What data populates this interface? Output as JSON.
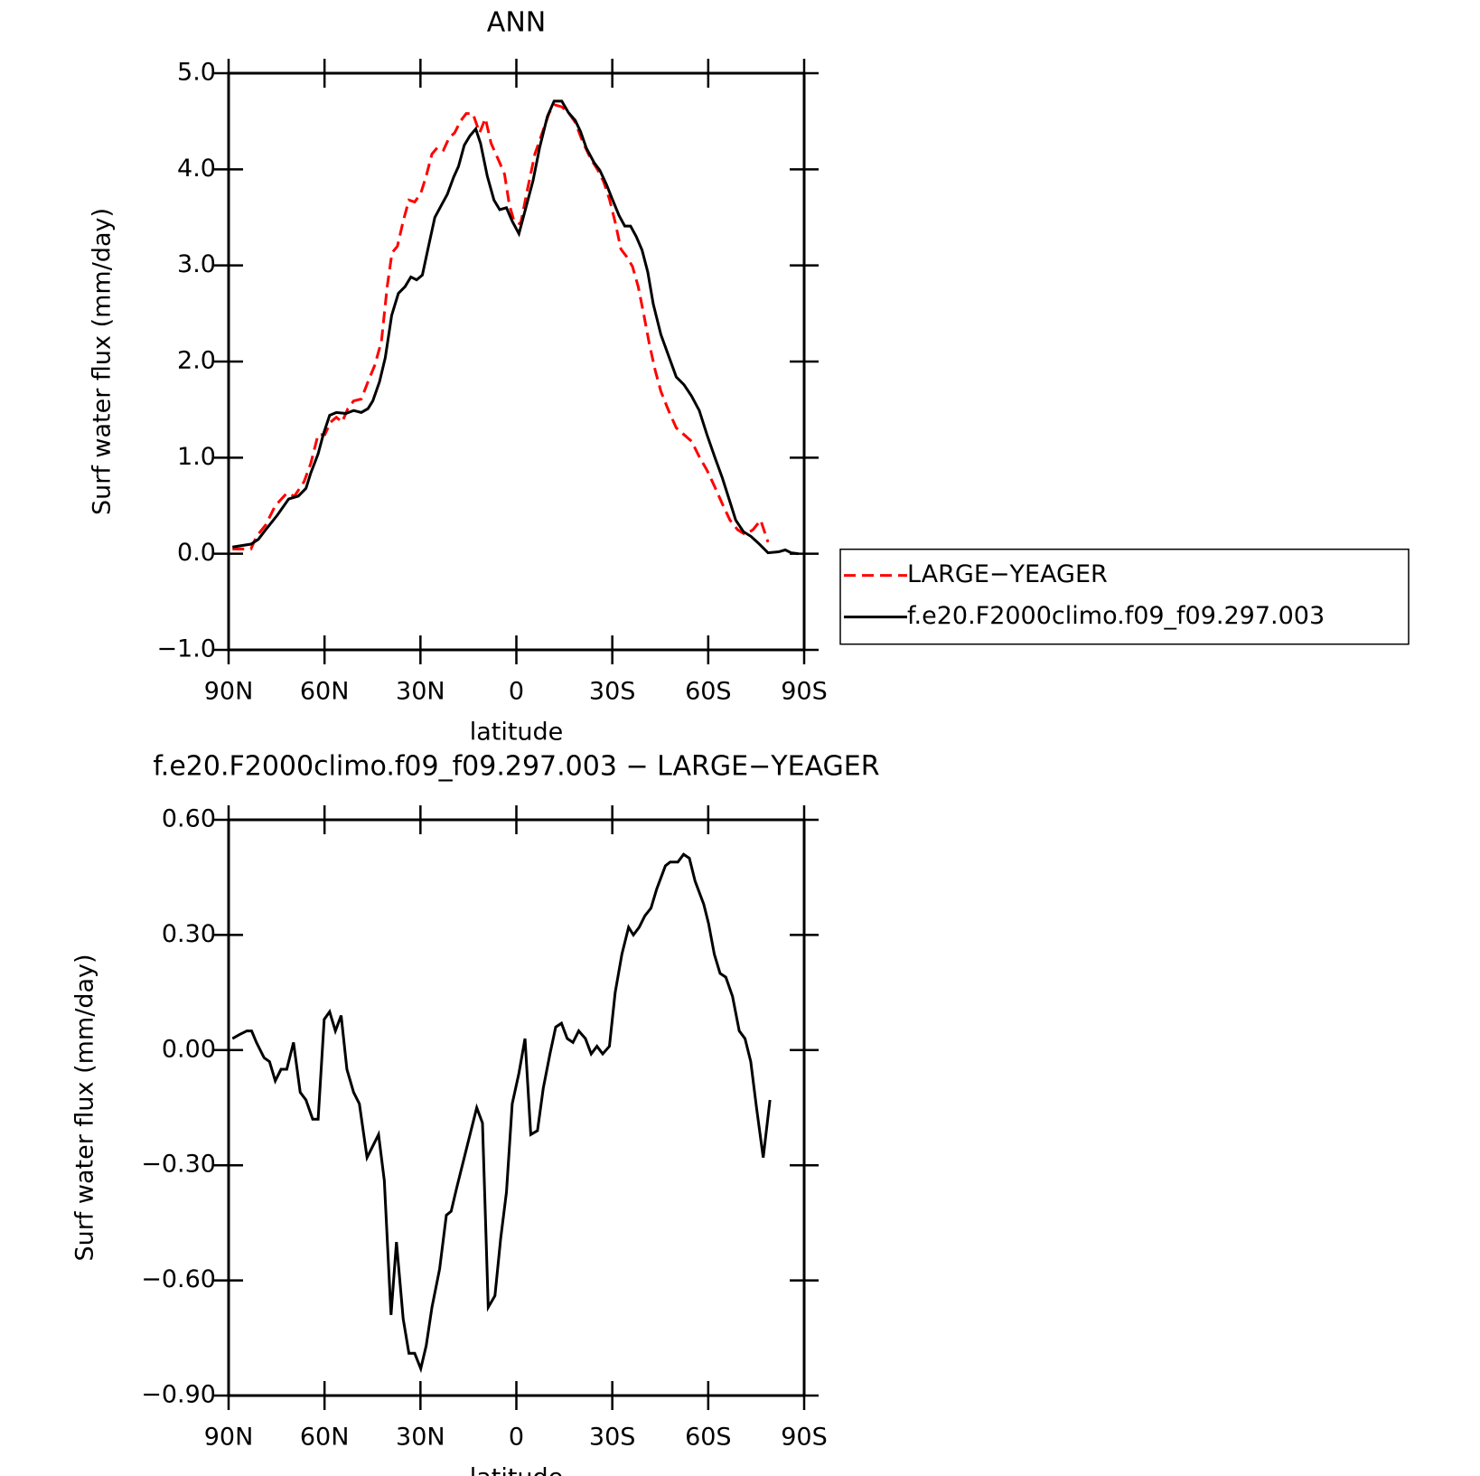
{
  "chart_data": [
    {
      "type": "line",
      "title": "ANN",
      "xlabel": "latitude",
      "ylabel": "Surf water flux (mm/day)",
      "xlim": [
        90,
        -90
      ],
      "xticks": [
        {
          "value": 90,
          "label": "90N"
        },
        {
          "value": 60,
          "label": "60N"
        },
        {
          "value": 30,
          "label": "30N"
        },
        0,
        {
          "value": -30,
          "label": "30S"
        },
        {
          "value": -60,
          "label": "60S"
        },
        {
          "value": -90,
          "label": "90S"
        }
      ],
      "ylim": [
        -1,
        5
      ],
      "yticks": [
        {
          "value": -1,
          "label": "−1.0"
        },
        {
          "value": 0,
          "label": "0.0"
        },
        {
          "value": 1,
          "label": "1.0"
        },
        {
          "value": 2,
          "label": "2.0"
        },
        {
          "value": 3,
          "label": "3.0"
        },
        {
          "value": 4,
          "label": "4.0"
        },
        {
          "value": 5,
          "label": "5.0"
        }
      ],
      "legend": "right",
      "series": [
        {
          "name": "LARGE−YEAGER",
          "color": "#ff0000",
          "line_style": "dashed",
          "x": [
            88.8,
            83,
            81.3,
            78.4,
            75.4,
            71.8,
            69.4,
            66.4,
            64.3,
            62,
            59.9,
            58.1,
            56.3,
            54.5,
            52.7,
            50.9,
            48.5,
            46.4,
            44.3,
            42.2,
            40.4,
            38.9,
            37.2,
            35.4,
            33.6,
            31.8,
            29.9,
            28.2,
            26.4,
            24.6,
            22.8,
            21,
            19.3,
            17.5,
            15.7,
            13.6,
            11.5,
            9.7,
            7.9,
            5.5,
            3.7,
            2.2,
            0.7,
            -1.3,
            -3.4,
            -5.8,
            -8.2,
            -10.3,
            -12.1,
            -14.2,
            -16.3,
            -18.4,
            -20.7,
            -23.1,
            -25.5,
            -27.3,
            -29.1,
            -30.9,
            -32.7,
            -34.5,
            -36.3,
            -38.1,
            -39.9,
            -41.6,
            -43.4,
            -45.2,
            -47.6,
            -50,
            -52.4,
            -54.8,
            -57.2,
            -59.6,
            -62,
            -64.4,
            -66.8,
            -69.2,
            -71.6,
            -74,
            -76.4,
            -78.7
          ],
          "values": [
            0.05,
            0.05,
            0.18,
            0.3,
            0.5,
            0.63,
            0.6,
            0.75,
            0.94,
            1.24,
            1.24,
            1.37,
            1.42,
            1.37,
            1.51,
            1.59,
            1.61,
            1.79,
            1.96,
            2.21,
            2.78,
            3.13,
            3.2,
            3.46,
            3.68,
            3.66,
            3.75,
            3.93,
            4.16,
            4.23,
            4.2,
            4.33,
            4.38,
            4.5,
            4.58,
            4.58,
            4.38,
            4.53,
            4.27,
            4.09,
            3.95,
            3.63,
            3.46,
            3.43,
            3.78,
            4.16,
            4.39,
            4.59,
            4.67,
            4.65,
            4.59,
            4.49,
            4.29,
            4.12,
            3.99,
            3.87,
            3.69,
            3.45,
            3.17,
            3.09,
            2.99,
            2.78,
            2.48,
            2.18,
            1.91,
            1.69,
            1.49,
            1.31,
            1.24,
            1.17,
            1.01,
            0.87,
            0.7,
            0.52,
            0.35,
            0.25,
            0.2,
            0.25,
            0.35,
            0.12
          ]
        },
        {
          "name": "f.e20.F2000climo.f09_f09.297.003",
          "color": "#000000",
          "line_style": "solid",
          "x": [
            88.8,
            83,
            80.7,
            78.4,
            74.8,
            71.2,
            68.2,
            65.8,
            64.3,
            62,
            60.4,
            58.4,
            56.3,
            53.3,
            50.9,
            48.5,
            46.4,
            44.9,
            42.8,
            41,
            39,
            36.9,
            34.8,
            33,
            31.2,
            29.4,
            27.6,
            25.5,
            23.4,
            21.6,
            19.6,
            18.1,
            16.3,
            14.5,
            12.7,
            11.2,
            9.1,
            7,
            5.2,
            3.1,
            1.3,
            -0.8,
            -2.8,
            -5.2,
            -7.3,
            -9.7,
            -11.8,
            -14.2,
            -16.3,
            -18.4,
            -20.1,
            -21.9,
            -24.3,
            -26.1,
            -28.2,
            -30,
            -32.1,
            -33.9,
            -35.7,
            -37.5,
            -39.3,
            -41.1,
            -42.8,
            -45.2,
            -47.6,
            -50,
            -52.4,
            -54.8,
            -57.2,
            -59.6,
            -62,
            -64.4,
            -66.8,
            -68.6,
            -71,
            -73.4,
            -75.7,
            -78.7,
            -82,
            -84.1,
            -85.9,
            -88.2
          ],
          "values": [
            0.07,
            0.1,
            0.15,
            0.25,
            0.4,
            0.57,
            0.6,
            0.68,
            0.84,
            1.04,
            1.24,
            1.44,
            1.47,
            1.46,
            1.49,
            1.47,
            1.51,
            1.59,
            1.79,
            2.04,
            2.48,
            2.71,
            2.78,
            2.88,
            2.85,
            2.9,
            3.18,
            3.5,
            3.63,
            3.74,
            3.92,
            4.03,
            4.25,
            4.35,
            4.42,
            4.27,
            3.93,
            3.68,
            3.58,
            3.6,
            3.46,
            3.33,
            3.58,
            3.88,
            4.23,
            4.55,
            4.71,
            4.71,
            4.59,
            4.51,
            4.39,
            4.22,
            4.07,
            3.99,
            3.84,
            3.69,
            3.52,
            3.41,
            3.41,
            3.3,
            3.16,
            2.93,
            2.6,
            2.28,
            2.06,
            1.84,
            1.76,
            1.64,
            1.49,
            1.24,
            1.01,
            0.79,
            0.54,
            0.35,
            0.23,
            0.18,
            0.11,
            0.01,
            0.02,
            0.04,
            0.01,
            0
          ]
        }
      ]
    },
    {
      "type": "line",
      "title": "f.e20.F2000climo.f09_f09.297.003 − LARGE−YEAGER",
      "xlabel": "latitude",
      "ylabel": "Surf water flux (mm/day)",
      "xlim": [
        90,
        -90
      ],
      "xticks": [
        {
          "value": 90,
          "label": "90N"
        },
        {
          "value": 60,
          "label": "60N"
        },
        {
          "value": 30,
          "label": "30N"
        },
        0,
        {
          "value": -30,
          "label": "30S"
        },
        {
          "value": -60,
          "label": "60S"
        },
        {
          "value": -90,
          "label": "90S"
        }
      ],
      "ylim": [
        -0.9,
        0.6
      ],
      "yticks": [
        {
          "value": -0.9,
          "label": "−0.90"
        },
        {
          "value": -0.6,
          "label": "−0.60"
        },
        {
          "value": -0.3,
          "label": "−0.30"
        },
        {
          "value": 0,
          "label": "0.00"
        },
        {
          "value": 0.3,
          "label": "0.30"
        },
        {
          "value": 0.6,
          "label": "0.60"
        }
      ],
      "color": "#000000",
      "x": [
        88.8,
        86.7,
        84.3,
        82.8,
        81.3,
        78.9,
        77.2,
        75.4,
        73.6,
        71.8,
        69.7,
        67.6,
        65.8,
        63.7,
        62,
        60.1,
        58.4,
        56.6,
        54.8,
        53,
        50.9,
        49.1,
        46.7,
        44.9,
        43.1,
        41.3,
        39.2,
        37.5,
        35.4,
        33.6,
        31.8,
        29.9,
        28.2,
        26.4,
        24,
        21.9,
        20.4,
        18.7,
        16.6,
        14.5,
        12.4,
        10.6,
        8.8,
        6.7,
        4.9,
        3.1,
        1.3,
        -0.8,
        -2.7,
        -4.5,
        -6.6,
        -8.4,
        -10.5,
        -12.3,
        -14.1,
        -15.9,
        -17.7,
        -19.5,
        -21.6,
        -23.4,
        -25.2,
        -27,
        -29.1,
        -30.9,
        -33,
        -35.1,
        -36.6,
        -38.4,
        -40.2,
        -42.1,
        -43.9,
        -46.6,
        -48.1,
        -50.5,
        -52.3,
        -54.1,
        -55.9,
        -58.6,
        -60.1,
        -61.9,
        -63.7,
        -65.5,
        -67.6,
        -69.7,
        -71.5,
        -73.3,
        -75.1,
        -77.2,
        -79.3
      ],
      "values": [
        0.03,
        0.04,
        0.05,
        0.05,
        0.02,
        -0.02,
        -0.03,
        -0.08,
        -0.05,
        -0.05,
        0.02,
        -0.11,
        -0.13,
        -0.18,
        -0.18,
        0.08,
        0.1,
        0.05,
        0.09,
        -0.05,
        -0.11,
        -0.14,
        -0.28,
        -0.25,
        -0.22,
        -0.34,
        -0.69,
        -0.5,
        -0.7,
        -0.79,
        -0.79,
        -0.83,
        -0.77,
        -0.67,
        -0.57,
        -0.43,
        -0.42,
        -0.36,
        -0.29,
        -0.22,
        -0.15,
        -0.19,
        -0.67,
        -0.64,
        -0.49,
        -0.37,
        -0.14,
        -0.06,
        0.03,
        -0.22,
        -0.21,
        -0.1,
        -0.01,
        0.06,
        0.07,
        0.03,
        0.02,
        0.05,
        0.03,
        -0.01,
        0.01,
        -0.01,
        0.01,
        0.15,
        0.25,
        0.32,
        0.3,
        0.32,
        0.35,
        0.37,
        0.42,
        0.48,
        0.49,
        0.49,
        0.51,
        0.5,
        0.44,
        0.38,
        0.33,
        0.25,
        0.2,
        0.19,
        0.14,
        0.05,
        0.03,
        -0.03,
        -0.15,
        -0.28,
        -0.13
      ]
    }
  ]
}
